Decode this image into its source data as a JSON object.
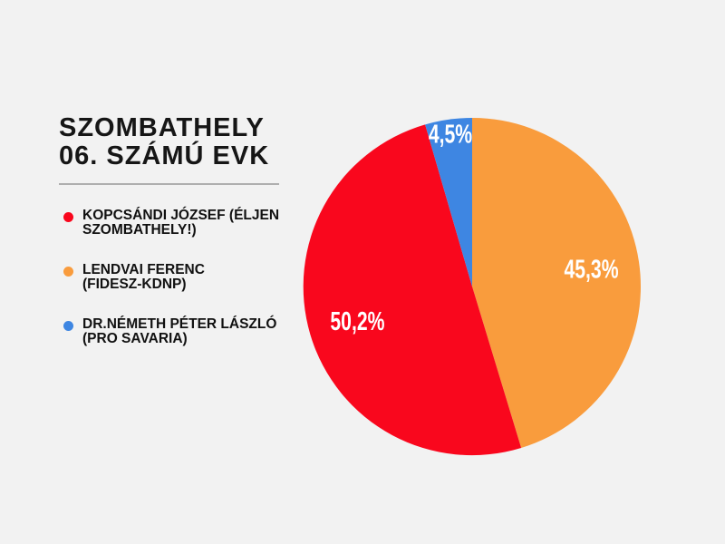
{
  "page": {
    "background": "#F2F2F2"
  },
  "header": {
    "title_line1": "SZOMBATHELY",
    "title_line2": "06. SZÁMÚ EVK"
  },
  "legend": {
    "items": [
      {
        "id": "kopcsandi-jozsef",
        "color": "#F9071D",
        "lines": [
          "KOPCSÁNDI JÓZSEF (ÉLJEN",
          "SZOMBATHELY!)"
        ]
      },
      {
        "id": "lendvai-ferenc",
        "color": "#F99C3D",
        "lines": [
          "LENDVAI FERENC",
          "(FIDESZ-KDNP)"
        ]
      },
      {
        "id": "nemeth-peter",
        "color": "#3E86E2",
        "lines": [
          "DR.NÉMETH PÉTER LÁSZLÓ",
          "(PRO SAVARIA)"
        ]
      }
    ]
  },
  "chart_data": {
    "type": "pie",
    "title": "SZOMBATHELY 06. SZÁMÚ EVK",
    "legend_position": "left",
    "start_angle_deg": 0,
    "direction": "clockwise",
    "center": [
      521,
      316
    ],
    "radius": 186,
    "slices": [
      {
        "id": "lendvai-ferenc",
        "name": "LENDVAI FERENC (FIDESZ-KDNP)",
        "value": 45.3,
        "label": "45,3%",
        "color": "#F99C3D",
        "label_r": 0.715
      },
      {
        "id": "kopcsandi-jozsef",
        "name": "KOPCSÁNDI JÓZSEF (ÉLJEN SZOMBATHELY!)",
        "value": 50.2,
        "label": "50,2%",
        "color": "#F9071D",
        "label_r": 0.71
      },
      {
        "id": "nemeth-peter",
        "name": "DR.NÉMETH PÉTER LÁSZLÓ (PRO SAVARIA)",
        "value": 4.5,
        "label": "4,5%",
        "color": "#3E86E2",
        "label_r": 0.915
      }
    ]
  }
}
